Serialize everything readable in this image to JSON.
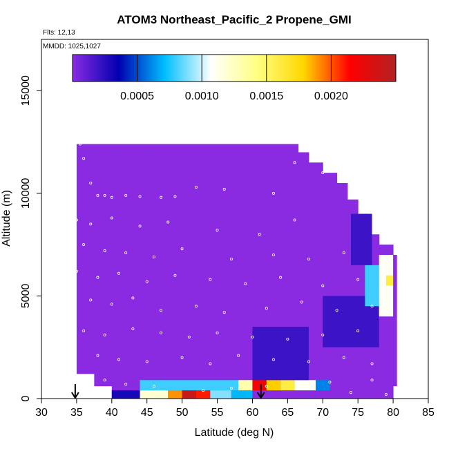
{
  "chart_data": {
    "type": "heatmap",
    "title": "ATOM3 Northeast_Pacific_2 Propene_GMI",
    "annotations": [
      "Flts: 12,13",
      "MMDD: 1025,1027"
    ],
    "xlabel": "Latitude (deg N)",
    "ylabel": "Altitude (m)",
    "xlim": [
      30,
      85
    ],
    "ylim": [
      0,
      17500
    ],
    "x_ticks": [
      "30",
      "35",
      "40",
      "45",
      "50",
      "55",
      "60",
      "65",
      "70",
      "75",
      "80",
      "85"
    ],
    "y_ticks": [
      "0",
      "5000",
      "10000",
      "15000"
    ],
    "colorbar": {
      "range": [
        0,
        0.0025
      ],
      "tick_values": [
        0.0005,
        0.001,
        0.0015,
        0.002
      ],
      "tick_labels": [
        "0.0005",
        "0.0010",
        "0.0015",
        "0.0020"
      ],
      "colors": [
        "#8A2BE2",
        "#0000B0",
        "#00BFFF",
        "#FFFFFF",
        "#FFFF80",
        "#FFD700",
        "#FF0000",
        "#B22222"
      ]
    },
    "curtain_columns": [
      {
        "lat": 35,
        "alt_min": 1200,
        "alt_max": 12400
      },
      {
        "lat": 37.5,
        "alt_min": 600,
        "alt_max": 12400
      },
      {
        "lat": 40,
        "alt_min": 0,
        "alt_max": 12400
      },
      {
        "lat": 45,
        "alt_min": 0,
        "alt_max": 12400
      },
      {
        "lat": 50,
        "alt_min": 0,
        "alt_max": 12400
      },
      {
        "lat": 55,
        "alt_min": 0,
        "alt_max": 12400
      },
      {
        "lat": 60,
        "alt_min": 0,
        "alt_max": 12400
      },
      {
        "lat": 65,
        "alt_min": 0,
        "alt_max": 12400
      },
      {
        "lat": 66.5,
        "alt_min": 0,
        "alt_max": 12000
      },
      {
        "lat": 68,
        "alt_min": 0,
        "alt_max": 11500
      },
      {
        "lat": 70,
        "alt_min": 0,
        "alt_max": 11000
      },
      {
        "lat": 72,
        "alt_min": 0,
        "alt_max": 10500
      },
      {
        "lat": 73.5,
        "alt_min": 0,
        "alt_max": 9700
      },
      {
        "lat": 75,
        "alt_min": 0,
        "alt_max": 9000
      },
      {
        "lat": 76.5,
        "alt_min": 0,
        "alt_max": 8000
      },
      {
        "lat": 78,
        "alt_min": 0,
        "alt_max": 7500
      },
      {
        "lat": 80,
        "alt_min": 600,
        "alt_max": 7000
      }
    ],
    "plumes": [
      {
        "lat_min": 44,
        "lat_max": 48,
        "alt_min": 0,
        "alt_max": 400,
        "value": 0.0012
      },
      {
        "lat_min": 48,
        "lat_max": 50,
        "alt_min": 0,
        "alt_max": 400,
        "value": 0.0019
      },
      {
        "lat_min": 50,
        "lat_max": 52,
        "alt_min": 0,
        "alt_max": 400,
        "value": 0.0024
      },
      {
        "lat_min": 52,
        "lat_max": 54,
        "alt_min": 0,
        "alt_max": 400,
        "value": 0.0021
      },
      {
        "lat_min": 54,
        "lat_max": 57,
        "alt_min": 0,
        "alt_max": 400,
        "value": 0.0009
      },
      {
        "lat_min": 57,
        "lat_max": 60,
        "alt_min": 0,
        "alt_max": 400,
        "value": 0.0007
      },
      {
        "lat_min": 40,
        "lat_max": 44,
        "alt_min": 0,
        "alt_max": 400,
        "value": 0.0003
      },
      {
        "lat_min": 44,
        "lat_max": 58,
        "alt_min": 400,
        "alt_max": 900,
        "value": 0.0008
      },
      {
        "lat_min": 58,
        "lat_max": 60,
        "alt_min": 400,
        "alt_max": 900,
        "value": 0.0013
      },
      {
        "lat_min": 60,
        "lat_max": 62,
        "alt_min": 400,
        "alt_max": 900,
        "value": 0.0022
      },
      {
        "lat_min": 62,
        "lat_max": 64,
        "alt_min": 400,
        "alt_max": 900,
        "value": 0.0018
      },
      {
        "lat_min": 64,
        "lat_max": 66,
        "alt_min": 400,
        "alt_max": 900,
        "value": 0.0016
      },
      {
        "lat_min": 66,
        "lat_max": 69,
        "alt_min": 400,
        "alt_max": 900,
        "value": 0.0011
      },
      {
        "lat_min": 69,
        "lat_max": 71,
        "alt_min": 400,
        "alt_max": 900,
        "value": 0.0006
      },
      {
        "lat_min": 60,
        "lat_max": 68,
        "alt_min": 900,
        "alt_max": 3500,
        "value": 0.0002
      },
      {
        "lat_min": 70,
        "lat_max": 78,
        "alt_min": 2500,
        "alt_max": 5000,
        "value": 0.0002
      },
      {
        "lat_min": 76,
        "lat_max": 78,
        "alt_min": 4500,
        "alt_max": 6500,
        "value": 0.0008
      },
      {
        "lat_min": 78,
        "lat_max": 80,
        "alt_min": 4000,
        "alt_max": 7000,
        "value": 0.0011
      },
      {
        "lat_min": 79,
        "lat_max": 80,
        "alt_min": 5500,
        "alt_max": 6000,
        "value": 0.0016
      },
      {
        "lat_min": 74,
        "lat_max": 77,
        "alt_min": 6500,
        "alt_max": 9000,
        "value": 0.0002
      }
    ],
    "observation_points": [
      [
        35.5,
        12400
      ],
      [
        36,
        11700
      ],
      [
        37,
        10500
      ],
      [
        38,
        9900
      ],
      [
        39,
        9900
      ],
      [
        40,
        9800
      ],
      [
        42,
        9900
      ],
      [
        44,
        9850
      ],
      [
        47,
        9800
      ],
      [
        49,
        9850
      ],
      [
        52,
        10300
      ],
      [
        56,
        10200
      ],
      [
        63,
        10000
      ],
      [
        66,
        11500
      ],
      [
        70,
        11000
      ],
      [
        35,
        8700
      ],
      [
        37,
        8500
      ],
      [
        40,
        8800
      ],
      [
        44,
        8400
      ],
      [
        48,
        8600
      ],
      [
        55,
        8200
      ],
      [
        61,
        8000
      ],
      [
        66,
        8700
      ],
      [
        36,
        7500
      ],
      [
        39,
        7200
      ],
      [
        42,
        7100
      ],
      [
        46,
        6900
      ],
      [
        50,
        7300
      ],
      [
        57,
        6800
      ],
      [
        63,
        7000
      ],
      [
        68,
        6800
      ],
      [
        73,
        7100
      ],
      [
        35,
        6200
      ],
      [
        38,
        5900
      ],
      [
        41,
        6100
      ],
      [
        45,
        5700
      ],
      [
        49,
        6000
      ],
      [
        54,
        5800
      ],
      [
        59,
        5600
      ],
      [
        64,
        5900
      ],
      [
        70,
        5500
      ],
      [
        75,
        5800
      ],
      [
        37,
        4800
      ],
      [
        40,
        4600
      ],
      [
        43,
        4900
      ],
      [
        47,
        4300
      ],
      [
        52,
        4500
      ],
      [
        56,
        4200
      ],
      [
        62,
        4400
      ],
      [
        67,
        4700
      ],
      [
        72,
        4300
      ],
      [
        77,
        4500
      ],
      [
        36,
        3300
      ],
      [
        39,
        3100
      ],
      [
        43,
        3400
      ],
      [
        47,
        3200
      ],
      [
        51,
        3000
      ],
      [
        55,
        3200
      ],
      [
        60,
        3000
      ],
      [
        65,
        2900
      ],
      [
        70,
        3100
      ],
      [
        75,
        3300
      ],
      [
        38,
        2100
      ],
      [
        41,
        1900
      ],
      [
        45,
        1800
      ],
      [
        50,
        2000
      ],
      [
        54,
        1700
      ],
      [
        58,
        2100
      ],
      [
        63,
        1900
      ],
      [
        68,
        1800
      ],
      [
        73,
        2000
      ],
      [
        77,
        1700
      ],
      [
        39,
        900
      ],
      [
        42,
        700
      ],
      [
        46,
        600
      ],
      [
        57,
        500
      ],
      [
        62,
        600
      ],
      [
        67,
        500
      ],
      [
        71,
        800
      ],
      [
        74,
        300
      ],
      [
        79,
        200
      ],
      [
        77,
        900
      ],
      [
        45,
        300
      ],
      [
        53,
        400
      ]
    ],
    "arrows": [
      {
        "lat": 34.8,
        "alt": 0
      },
      {
        "lat": 61.2,
        "alt": 0
      }
    ]
  }
}
